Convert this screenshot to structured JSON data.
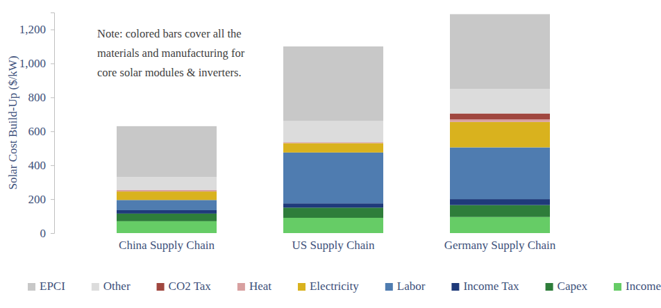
{
  "chart_data": {
    "type": "bar",
    "stacked": true,
    "y_label": "Solar Cost Build-Up ($/kW)",
    "annotations": [
      "Note: colored bars cover all the",
      "materials and manufacturing for",
      "core solar modules & inverters."
    ],
    "categories": [
      "China Supply Chain",
      "US Supply Chain",
      "Germany Supply Chain"
    ],
    "series": [
      {
        "name": "Income",
        "color": "#66cc66",
        "values": [
          70,
          90,
          95
        ]
      },
      {
        "name": "Capex",
        "color": "#2e7d3a",
        "values": [
          45,
          60,
          70
        ]
      },
      {
        "name": "Income Tax",
        "color": "#1f3a7a",
        "values": [
          20,
          25,
          35
        ]
      },
      {
        "name": "Labor",
        "color": "#4f7cb0",
        "values": [
          60,
          300,
          305
        ]
      },
      {
        "name": "Electricity",
        "color": "#d9b21e",
        "values": [
          50,
          55,
          150
        ]
      },
      {
        "name": "Heat",
        "color": "#d8a0a0",
        "values": [
          10,
          5,
          15
        ]
      },
      {
        "name": "CO2 Tax",
        "color": "#a0473f",
        "values": [
          0,
          0,
          35
        ]
      },
      {
        "name": "Other",
        "color": "#dcdcdc",
        "values": [
          75,
          125,
          145
        ]
      },
      {
        "name": "EPCI",
        "color": "#c8c8c8",
        "values": [
          300,
          440,
          440
        ]
      }
    ],
    "ylim": [
      0,
      1300
    ],
    "yticks": [
      0,
      200,
      400,
      600,
      800,
      {
        "value": 1000,
        "label": "1,000"
      },
      {
        "value": 1200,
        "label": "1,200"
      }
    ],
    "grid": false,
    "legend": "bottom"
  }
}
